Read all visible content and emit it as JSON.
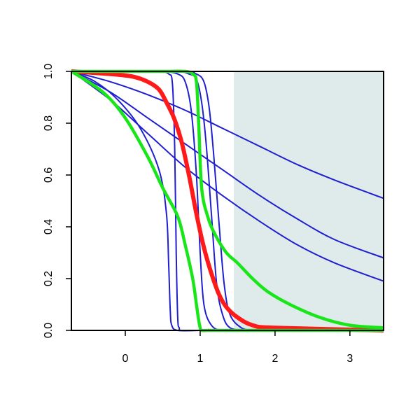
{
  "chart_data": {
    "type": "line",
    "title": "",
    "xlabel": "",
    "ylabel": "",
    "xlim": [
      -0.72,
      3.45
    ],
    "ylim": [
      0,
      1
    ],
    "grid": false,
    "x_ticks": [
      0,
      1,
      2,
      3
    ],
    "x_tick_labels": [
      "0",
      "1",
      "2",
      "3"
    ],
    "y_ticks": [
      0,
      0.2,
      0.4,
      0.6,
      0.8,
      1.0
    ],
    "y_tick_labels": [
      "0.0",
      "0.2",
      "0.4",
      "0.6",
      "0.8",
      "1.0"
    ],
    "shaded_region": {
      "x_from": 1.45,
      "x_to": 3.45,
      "y_from": 0,
      "y_to": 1,
      "color": "#dfeaea"
    },
    "colors": {
      "blue": "#1f1fd0",
      "red": "#ff1a1a",
      "green": "#19e619",
      "axis": "#000000"
    },
    "series": [
      {
        "color": "blue",
        "x": [
          -0.72,
          -0.2,
          0.3,
          0.8,
          1.3,
          1.8,
          2.3,
          2.8,
          3.45
        ],
        "values": [
          1.0,
          0.96,
          0.91,
          0.85,
          0.78,
          0.71,
          0.64,
          0.58,
          0.51
        ]
      },
      {
        "color": "blue",
        "x": [
          -0.72,
          -0.2,
          0.3,
          0.8,
          1.3,
          1.8,
          2.3,
          2.8,
          3.45
        ],
        "values": [
          1.0,
          0.92,
          0.82,
          0.72,
          0.62,
          0.52,
          0.43,
          0.35,
          0.28
        ]
      },
      {
        "color": "blue",
        "x": [
          -0.72,
          -0.2,
          0.3,
          0.8,
          1.3,
          1.8,
          2.3,
          2.8,
          3.45
        ],
        "values": [
          1.0,
          0.89,
          0.76,
          0.63,
          0.52,
          0.42,
          0.33,
          0.26,
          0.19
        ]
      },
      {
        "color": "blue",
        "x": [
          -0.72,
          -0.4,
          -0.1,
          0.2,
          0.45,
          0.55,
          0.58,
          0.6,
          0.62,
          0.7,
          1.0,
          1.5
        ],
        "values": [
          1.0,
          0.96,
          0.89,
          0.78,
          0.62,
          0.45,
          0.25,
          0.08,
          0.02,
          0.0,
          0.0,
          0.0
        ]
      },
      {
        "color": "blue",
        "x": [
          -0.72,
          0.2,
          0.45,
          0.58,
          0.63,
          0.66,
          0.68,
          0.7,
          0.72,
          0.75,
          1.0,
          1.5
        ],
        "values": [
          1.0,
          1.0,
          1.0,
          0.99,
          0.95,
          0.7,
          0.3,
          0.05,
          0.01,
          0.0,
          0.0,
          0.0
        ]
      },
      {
        "color": "blue",
        "x": [
          -0.72,
          0.2,
          0.5,
          0.7,
          0.8,
          0.88,
          0.95,
          1.0,
          1.05,
          1.15,
          1.3,
          1.6
        ],
        "values": [
          1.0,
          1.0,
          1.0,
          0.99,
          0.96,
          0.85,
          0.6,
          0.3,
          0.1,
          0.02,
          0.0,
          0.0
        ]
      },
      {
        "color": "blue",
        "x": [
          -0.72,
          0.3,
          0.7,
          0.85,
          0.95,
          1.02,
          1.08,
          1.15,
          1.22,
          1.3,
          1.4,
          1.6
        ],
        "values": [
          1.0,
          1.0,
          1.0,
          0.99,
          0.97,
          0.88,
          0.72,
          0.45,
          0.18,
          0.06,
          0.01,
          0.0
        ]
      },
      {
        "color": "blue",
        "x": [
          -0.72,
          0.3,
          0.8,
          0.95,
          1.05,
          1.12,
          1.18,
          1.25,
          1.32,
          1.4,
          1.55,
          1.7
        ],
        "values": [
          1.0,
          1.0,
          1.0,
          0.99,
          0.96,
          0.86,
          0.68,
          0.42,
          0.18,
          0.06,
          0.01,
          0.0
        ]
      },
      {
        "color": "red",
        "x": [
          -0.72,
          -0.2,
          0.1,
          0.3,
          0.45,
          0.55,
          0.65,
          0.75,
          0.85,
          0.95,
          1.05,
          1.15,
          1.25,
          1.35,
          1.5,
          1.7,
          2.0,
          3.45
        ],
        "values": [
          1.0,
          0.99,
          0.98,
          0.96,
          0.93,
          0.88,
          0.82,
          0.73,
          0.6,
          0.45,
          0.32,
          0.22,
          0.14,
          0.09,
          0.05,
          0.02,
          0.01,
          0.0
        ]
      },
      {
        "color": "green",
        "x": [
          -0.72,
          -0.3,
          0.0,
          0.3,
          0.5,
          0.7,
          0.8,
          0.9,
          0.95,
          0.98,
          1.0,
          1.02,
          1.1,
          1.2,
          1.4,
          1.6,
          1.9,
          2.2,
          2.6,
          3.0,
          3.45
        ],
        "values": [
          1.0,
          0.92,
          0.82,
          0.67,
          0.55,
          0.44,
          0.33,
          0.2,
          0.1,
          0.04,
          0.01,
          0.0,
          0.0,
          0.0,
          0.0,
          0.0,
          0.0,
          0.0,
          0.0,
          0.0,
          0.0
        ]
      },
      {
        "color": "green",
        "x": [
          -0.72,
          0.0,
          0.5,
          0.8,
          0.9,
          0.95,
          0.98,
          1.02,
          1.1,
          1.2,
          1.35,
          1.5,
          1.7,
          1.9,
          2.2,
          2.6,
          3.0,
          3.45
        ],
        "values": [
          1.0,
          1.0,
          1.0,
          1.0,
          0.99,
          0.96,
          0.8,
          0.55,
          0.44,
          0.37,
          0.3,
          0.26,
          0.2,
          0.15,
          0.1,
          0.05,
          0.02,
          0.01
        ]
      }
    ]
  }
}
